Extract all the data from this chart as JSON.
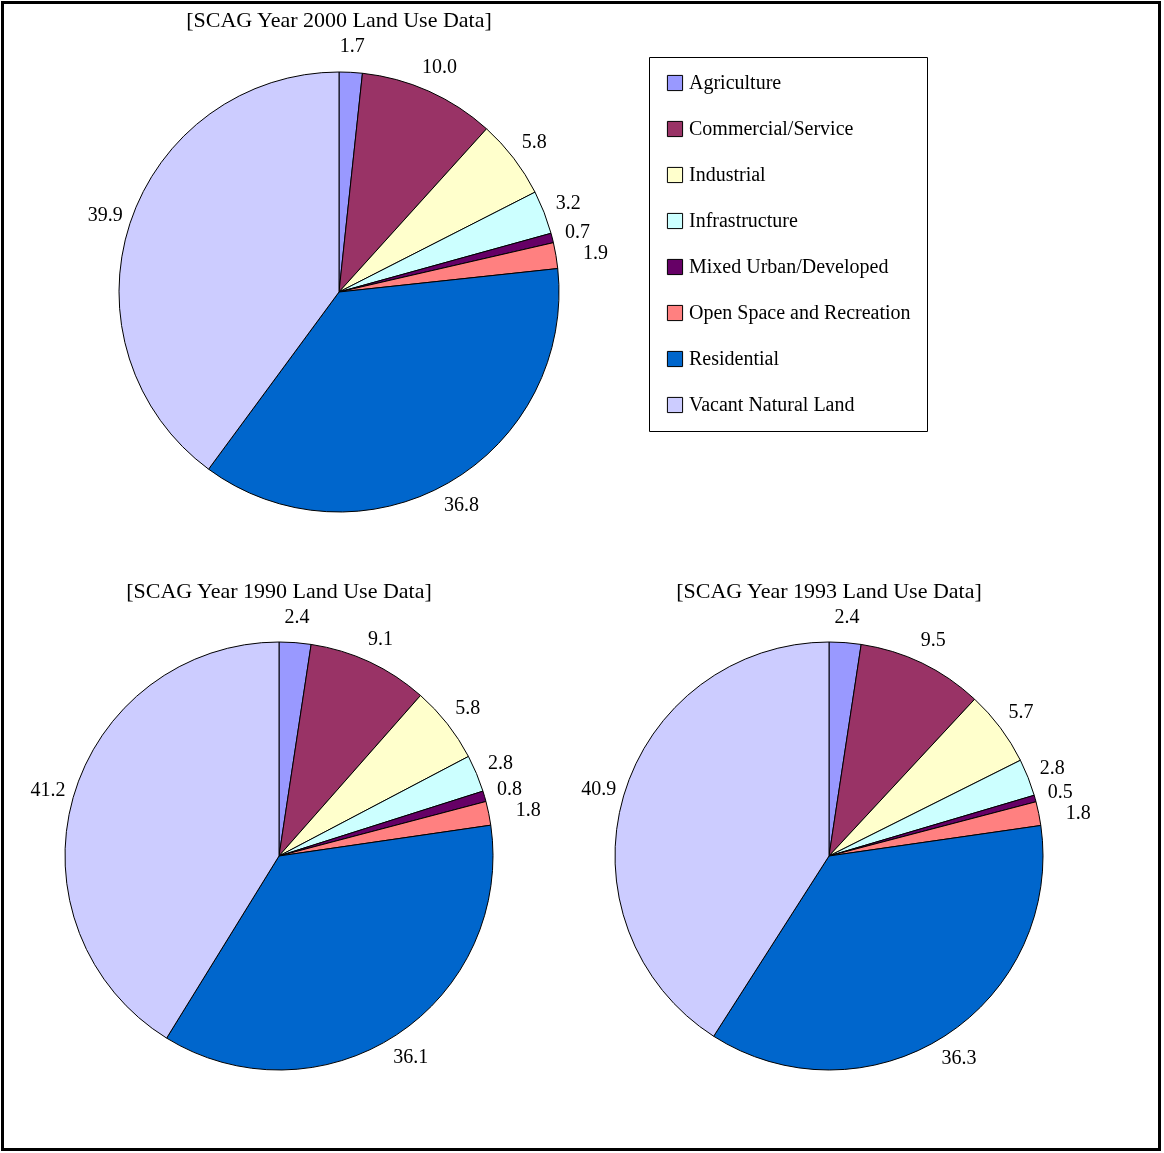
{
  "chart_data": [
    {
      "type": "pie",
      "title": "[SCAG Year 2000 Land Use Data]",
      "categories": [
        "Agriculture",
        "Commercial/Service",
        "Industrial",
        "Infrastructure",
        "Mixed Urban/Developed",
        "Open Space and Recreation",
        "Residential",
        "Vacant Natural Land"
      ],
      "values": [
        1.7,
        10.0,
        5.8,
        3.2,
        0.7,
        1.9,
        36.8,
        39.9
      ],
      "value_labels": [
        "1.7",
        "10.0",
        "5.8",
        "3.2",
        "0.7",
        "1.9",
        "36.8",
        "39.9"
      ],
      "colors": [
        "#9999ff",
        "#993366",
        "#ffffcc",
        "#ccffff",
        "#660066",
        "#ff8080",
        "#0066cc",
        "#ccccff"
      ],
      "legend": "right"
    },
    {
      "type": "pie",
      "title": "[SCAG Year 1990 Land Use Data]",
      "categories": [
        null,
        null,
        null,
        null,
        null,
        null,
        null,
        null
      ],
      "values": [
        2.4,
        9.1,
        5.8,
        2.8,
        0.8,
        1.8,
        36.1,
        41.2
      ],
      "value_labels": [
        "2.4",
        "9.1",
        "5.8",
        "2.8",
        "0.8",
        "1.8",
        "36.1",
        "41.2"
      ],
      "colors": [
        "#9999ff",
        "#993366",
        "#ffffcc",
        "#ccffff",
        "#660066",
        "#ff8080",
        "#0066cc",
        "#ccccff"
      ]
    },
    {
      "type": "pie",
      "title": "[SCAG Year 1993 Land Use Data]",
      "categories": [
        null,
        null,
        null,
        null,
        null,
        null,
        null,
        null
      ],
      "values": [
        2.4,
        9.5,
        5.7,
        2.8,
        0.5,
        1.8,
        36.3,
        40.9
      ],
      "value_labels": [
        "2.4",
        "9.5",
        "5.7",
        "2.8",
        "0.5",
        "1.8",
        "36.3",
        "40.9"
      ],
      "colors": [
        "#9999ff",
        "#993366",
        "#ffffcc",
        "#ccffff",
        "#660066",
        "#ff8080",
        "#0066cc",
        "#ccccff"
      ]
    }
  ]
}
